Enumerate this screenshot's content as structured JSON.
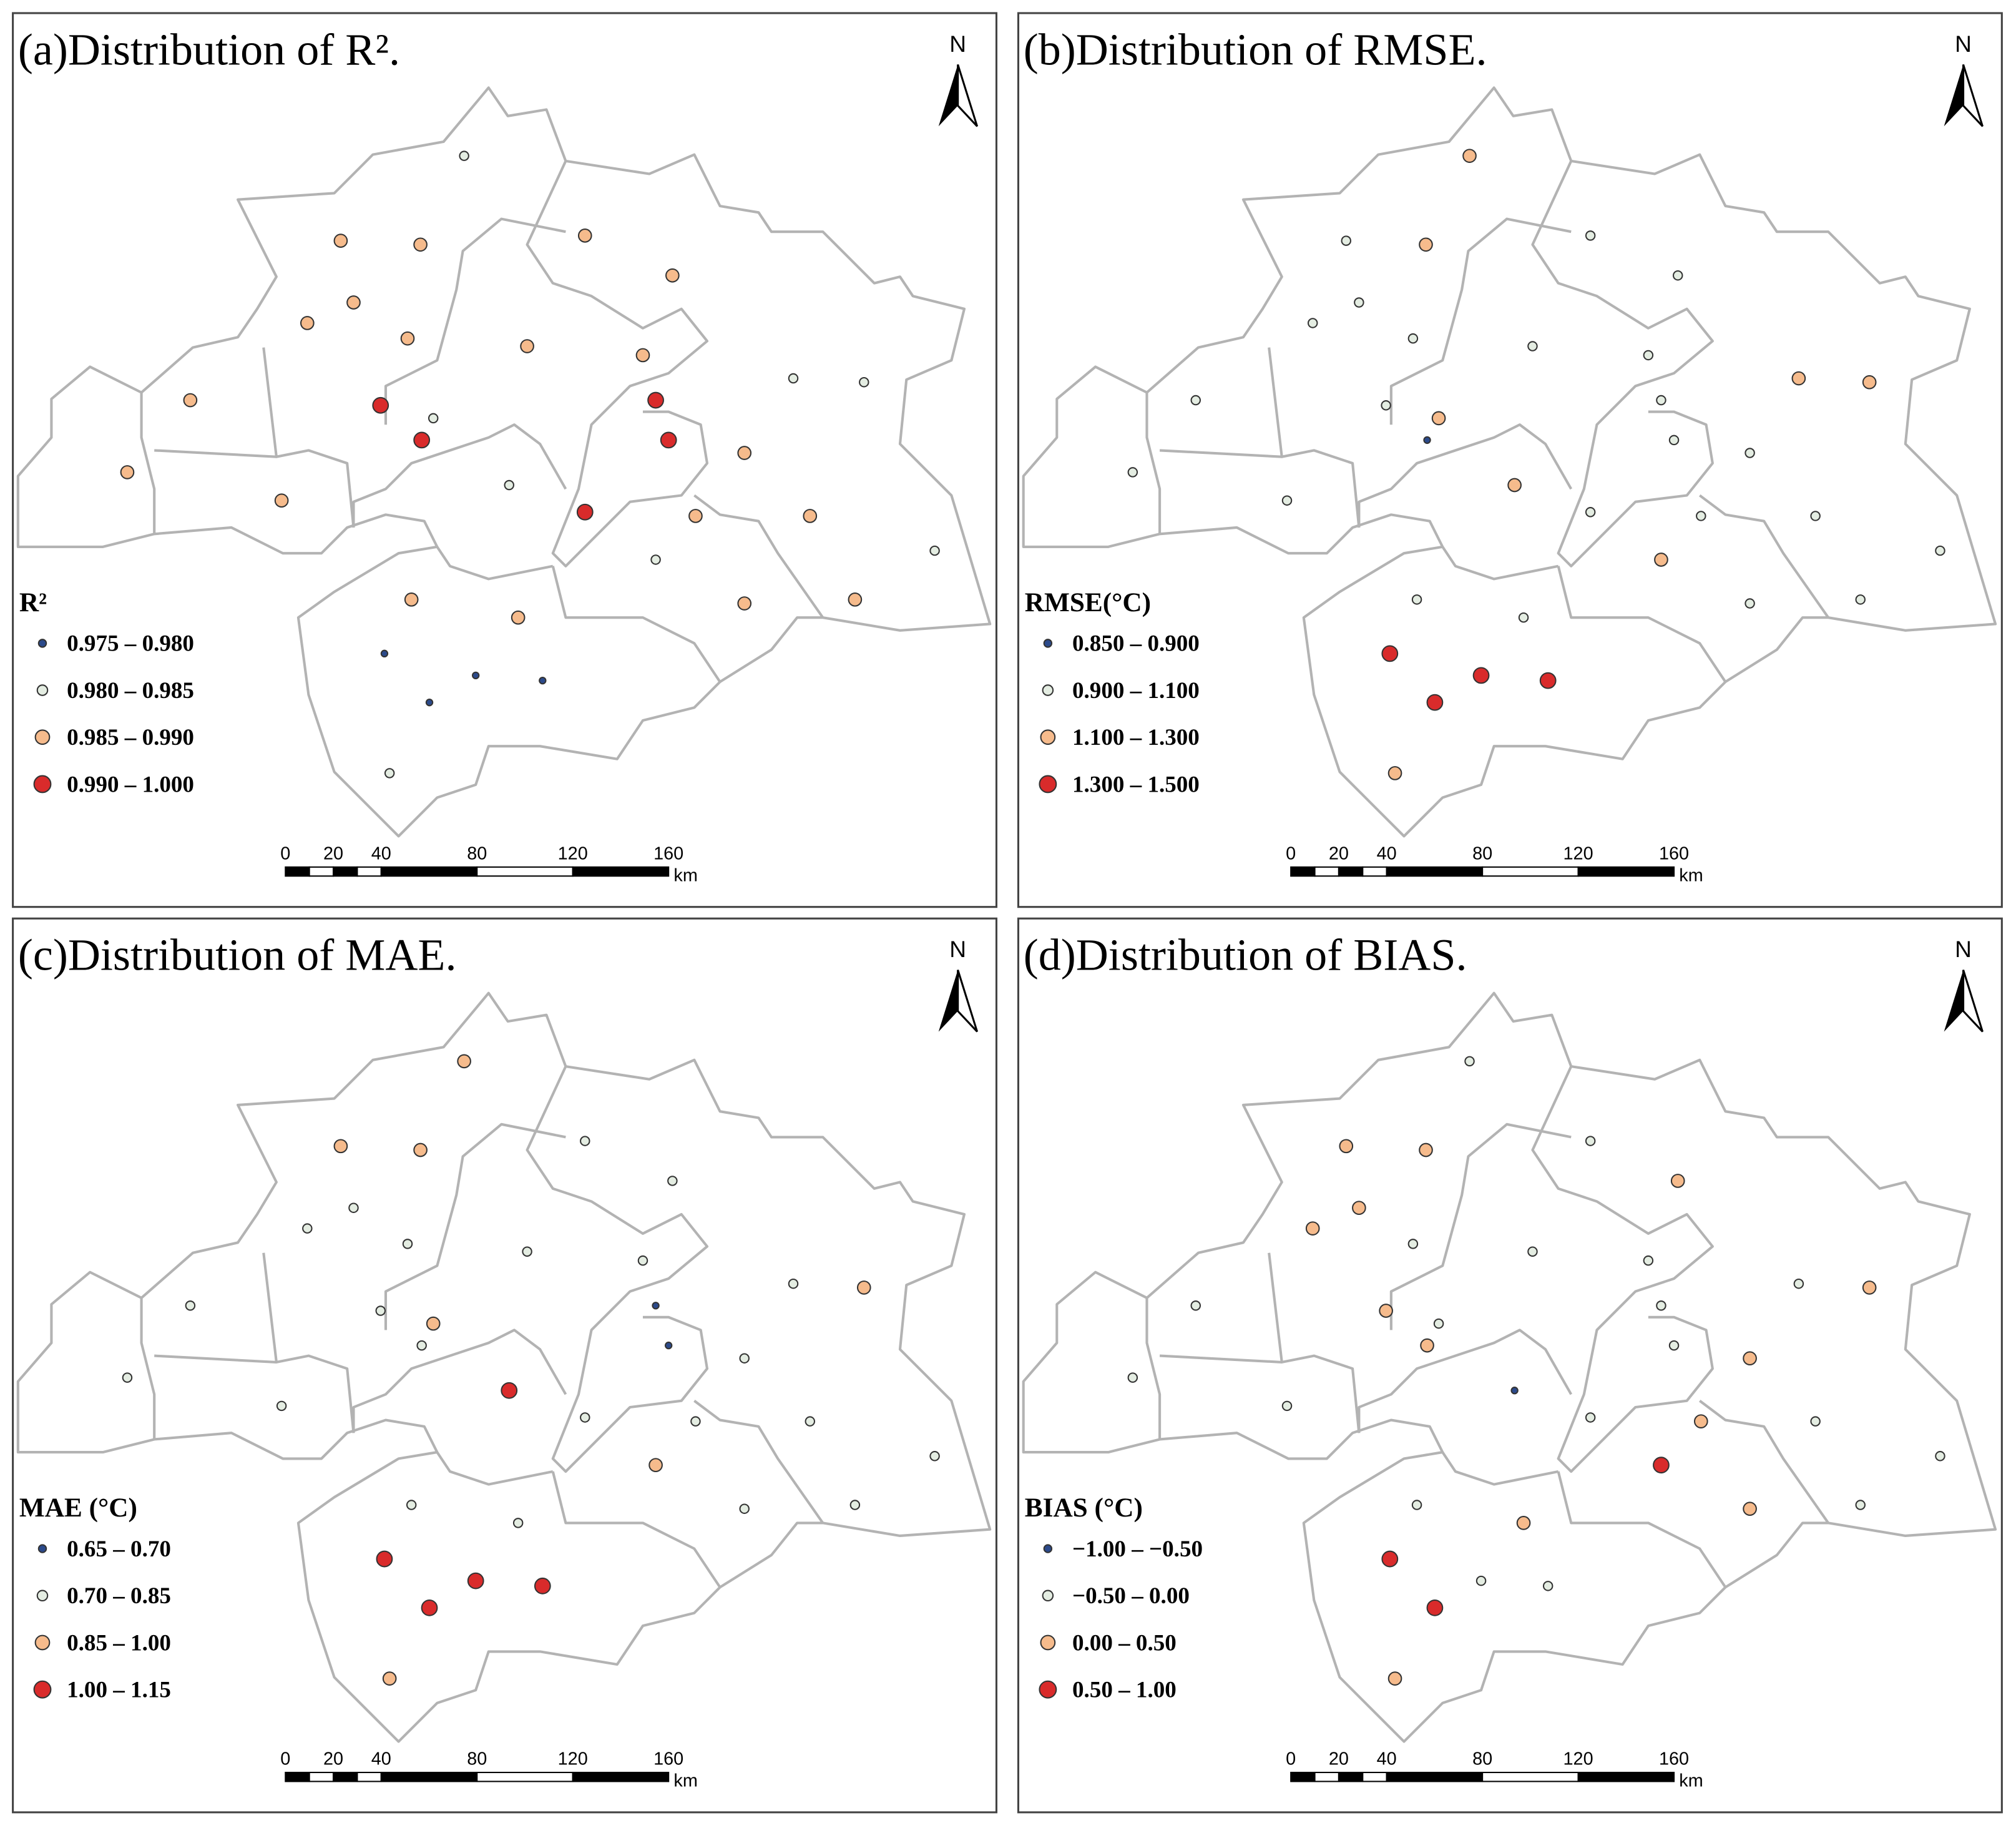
{
  "panels": [
    {
      "title": "(a)Distribution of R².",
      "legend": {
        "title": "R²",
        "classes": [
          {
            "label": "0.975 – 0.980",
            "color": "#2b4a8b"
          },
          {
            "label": "0.980 – 0.985",
            "color": "#e4ede2"
          },
          {
            "label": "0.985 – 0.990",
            "color": "#f6bb8c"
          },
          {
            "label": "0.990 – 1.000",
            "color": "#d92b2b"
          }
        ]
      },
      "station_classes": [
        1,
        2,
        2,
        2,
        2,
        2,
        2,
        2,
        2,
        2,
        2,
        3,
        1,
        3,
        3,
        3,
        1,
        1,
        2,
        2,
        2,
        1,
        3,
        2,
        2,
        1,
        1,
        2,
        2,
        2,
        2,
        0,
        0,
        0,
        0,
        1
      ]
    },
    {
      "title": "(b)Distribution of RMSE.",
      "legend": {
        "title": "RMSE(°C)",
        "classes": [
          {
            "label": "0.850 – 0.900",
            "color": "#2b4a8b"
          },
          {
            "label": "0.900 – 1.100",
            "color": "#e4ede2"
          },
          {
            "label": "1.100 – 1.300",
            "color": "#f6bb8c"
          },
          {
            "label": "1.300 – 1.500",
            "color": "#d92b2b"
          }
        ]
      },
      "station_classes": [
        2,
        1,
        2,
        1,
        1,
        1,
        1,
        1,
        1,
        1,
        1,
        1,
        2,
        1,
        0,
        1,
        2,
        2,
        1,
        1,
        1,
        2,
        1,
        1,
        1,
        2,
        1,
        1,
        1,
        1,
        1,
        3,
        3,
        3,
        3,
        2
      ]
    },
    {
      "title": "(c)Distribution of MAE.",
      "legend": {
        "title": "MAE (°C)",
        "classes": [
          {
            "label": "0.65 – 0.70",
            "color": "#2b4a8b"
          },
          {
            "label": "0.70 – 0.85",
            "color": "#e4ede2"
          },
          {
            "label": "0.85 – 1.00",
            "color": "#f6bb8c"
          },
          {
            "label": "1.00 – 1.15",
            "color": "#d92b2b"
          }
        ]
      },
      "station_classes": [
        2,
        2,
        2,
        1,
        1,
        1,
        1,
        1,
        1,
        1,
        1,
        1,
        2,
        0,
        1,
        0,
        1,
        2,
        1,
        1,
        1,
        3,
        1,
        1,
        1,
        2,
        1,
        1,
        1,
        1,
        1,
        3,
        3,
        3,
        3,
        2
      ]
    },
    {
      "title": "(d)Distribution of BIAS.",
      "legend": {
        "title": "BIAS (°C)",
        "classes": [
          {
            "label": "−1.00 – −0.50",
            "color": "#2b4a8b"
          },
          {
            "label": "−0.50 – 0.00",
            "color": "#e4ede2"
          },
          {
            "label": "0.00 – 0.50",
            "color": "#f6bb8c"
          },
          {
            "label": "0.50 – 1.00",
            "color": "#d92b2b"
          }
        ]
      },
      "station_classes": [
        1,
        2,
        2,
        1,
        2,
        2,
        2,
        1,
        1,
        1,
        1,
        2,
        1,
        1,
        2,
        1,
        1,
        2,
        2,
        1,
        1,
        0,
        1,
        2,
        1,
        3,
        1,
        1,
        2,
        2,
        1,
        3,
        1,
        1,
        3,
        2
      ]
    }
  ],
  "north": "N",
  "scale_bar": {
    "ticks": [
      0,
      20,
      40,
      80,
      120,
      160
    ],
    "unit": "km"
  }
}
